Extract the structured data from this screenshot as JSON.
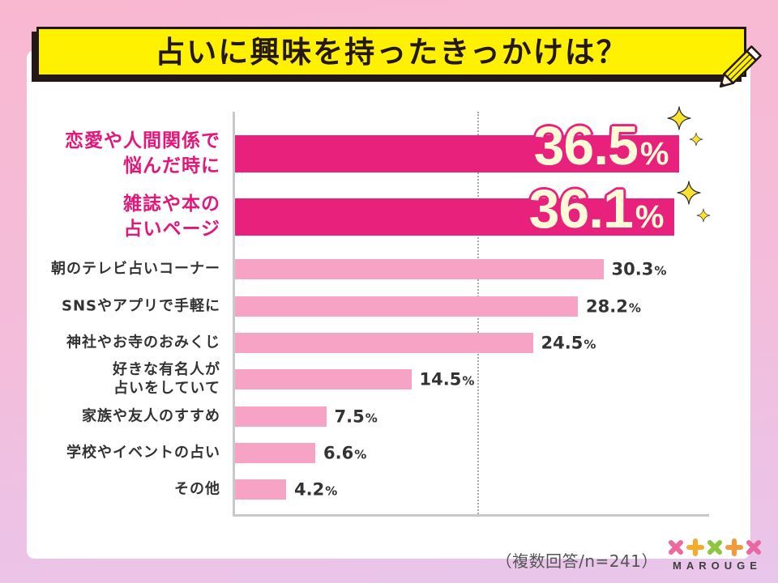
{
  "chart_data": {
    "type": "bar",
    "orientation": "horizontal",
    "title": "占いに興味を持ったきっかけは？",
    "categories": [
      "恋愛や人間関係で\n悩んだ時に",
      "雑誌や本の\n占いページ",
      "朝のテレビ占いコーナー",
      "SNSやアプリで手軽に",
      "神社やお寺のおみくじ",
      "好きな有名人が\n占いをしていて",
      "家族や友人のすすめ",
      "学校やイベントの占い",
      "その他"
    ],
    "values": [
      36.5,
      36.1,
      30.3,
      28.2,
      24.5,
      14.5,
      7.5,
      6.6,
      4.2
    ],
    "unit": "%",
    "xlim": [
      0,
      40
    ],
    "gridlines": [
      20
    ],
    "highlighted": [
      0,
      1
    ],
    "note": "（複数回答/n=241）"
  },
  "brand": {
    "logo_text": "MAROUGE",
    "logo_marks": [
      "x-mark-icon",
      "plus-mark-icon",
      "x-mark-icon",
      "plus-mark-icon",
      "x-mark-icon"
    ]
  },
  "icons": {
    "pencil": "pencil-icon",
    "sparkle": "sparkle-icon"
  },
  "colors": {
    "background_top": "#f9b8d0",
    "background_bottom": "#e9c6ec",
    "banner": "#fff100",
    "outline": "#231815",
    "highlight_bar": "#e8217c",
    "bar": "#f7a3c6",
    "highlight_label": "#e3177a",
    "label": "#333333",
    "value": "#333333",
    "big_value_fill": "#fffbd6",
    "axis": "#c9c9c9",
    "grid": "#a9a9a9",
    "sparkle": "#fbe22c",
    "note": "#555555",
    "logo_marks": [
      "#ef6a9c",
      "#f7ab2a",
      "#8cc63f",
      "#f39a3a",
      "#ea68a2"
    ]
  }
}
